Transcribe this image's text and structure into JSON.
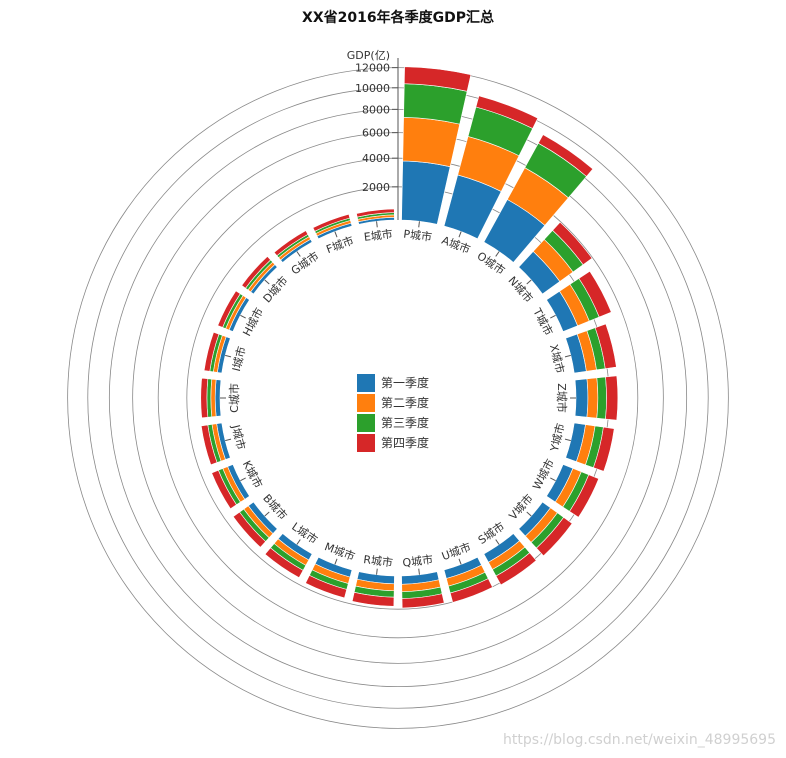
{
  "chart_data": {
    "type": "bar",
    "layout": "radial-stacked",
    "title": "XX省2016年各季度GDP汇总",
    "ylabel": "GDP(亿)",
    "y_ticks": [
      "2000",
      "4000",
      "6000",
      "8000",
      "10000",
      "12000"
    ],
    "y_tick_values": [
      2000,
      4000,
      6000,
      8000,
      10000,
      12000
    ],
    "ylim": [
      0,
      13000
    ],
    "categories": [
      "P城市",
      "A城市",
      "O城市",
      "N城市",
      "T城市",
      "X城市",
      "Z城市",
      "Y城市",
      "W城市",
      "V城市",
      "S城市",
      "U城市",
      "Q城市",
      "R城市",
      "M城市",
      "L城市",
      "B城市",
      "K城市",
      "J城市",
      "C城市",
      "I城市",
      "H城市",
      "D城市",
      "G城市",
      "F城市",
      "E城市"
    ],
    "series": [
      {
        "name": "第一季度",
        "color": "#1f77b4",
        "values": [
          3800,
          3350,
          3050,
          1250,
          900,
          700,
          680,
          650,
          600,
          560,
          540,
          500,
          470,
          440,
          420,
          390,
          360,
          320,
          290,
          270,
          250,
          230,
          200,
          180,
          170,
          150
        ]
      },
      {
        "name": "第二季度",
        "color": "#ff7f0e",
        "values": [
          3500,
          3100,
          2750,
          1050,
          780,
          620,
          600,
          580,
          540,
          510,
          490,
          470,
          440,
          410,
          390,
          360,
          330,
          300,
          270,
          250,
          230,
          210,
          190,
          170,
          160,
          140
        ]
      },
      {
        "name": "第三季度",
        "color": "#2ca02c",
        "values": [
          3100,
          2700,
          2400,
          850,
          700,
          560,
          550,
          530,
          500,
          480,
          460,
          440,
          420,
          390,
          370,
          340,
          310,
          280,
          250,
          230,
          210,
          190,
          170,
          150,
          140,
          130
        ]
      },
      {
        "name": "第四季度",
        "color": "#d62728",
        "values": [
          1700,
          1100,
          900,
          800,
          900,
          750,
          750,
          720,
          700,
          680,
          650,
          620,
          600,
          580,
          550,
          520,
          480,
          440,
          400,
          370,
          340,
          310,
          280,
          250,
          230,
          210
        ]
      }
    ],
    "legend_position": "center"
  },
  "watermark": "https://blog.csdn.net/weixin_48995695"
}
